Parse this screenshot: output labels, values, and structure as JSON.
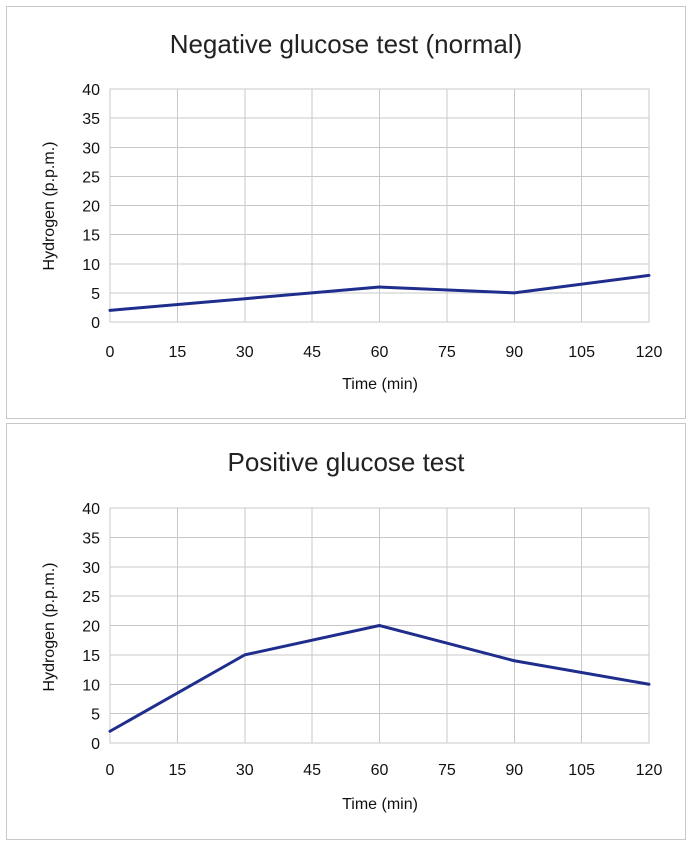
{
  "chart_data": [
    {
      "type": "line",
      "title": "Negative glucose test (normal)",
      "xlabel": "Time (min)",
      "ylabel": "Hydrogen (p.p.m.)",
      "x": [
        0,
        30,
        60,
        90,
        120
      ],
      "series": [
        {
          "values": [
            2,
            4,
            6,
            5,
            8
          ]
        }
      ],
      "xticks": [
        "0",
        "15",
        "30",
        "45",
        "60",
        "75",
        "90",
        "105",
        "120"
      ],
      "yticks": [
        "0",
        "5",
        "10",
        "15",
        "20",
        "25",
        "30",
        "35",
        "40"
      ],
      "xlim": [
        0,
        120
      ],
      "ylim": [
        0,
        40
      ],
      "grid": true,
      "line_color": "#1f2e8c"
    },
    {
      "type": "line",
      "title": "Positive glucose test",
      "xlabel": "Time (min)",
      "ylabel": "Hydrogen (p.p.m.)",
      "x": [
        0,
        30,
        60,
        90,
        120
      ],
      "series": [
        {
          "values": [
            2,
            15,
            20,
            14,
            10
          ]
        }
      ],
      "xticks": [
        "0",
        "15",
        "30",
        "45",
        "60",
        "75",
        "90",
        "105",
        "120"
      ],
      "yticks": [
        "0",
        "5",
        "10",
        "15",
        "20",
        "25",
        "30",
        "35",
        "40"
      ],
      "xlim": [
        0,
        120
      ],
      "ylim": [
        0,
        40
      ],
      "grid": true,
      "line_color": "#1f2e8c"
    }
  ]
}
